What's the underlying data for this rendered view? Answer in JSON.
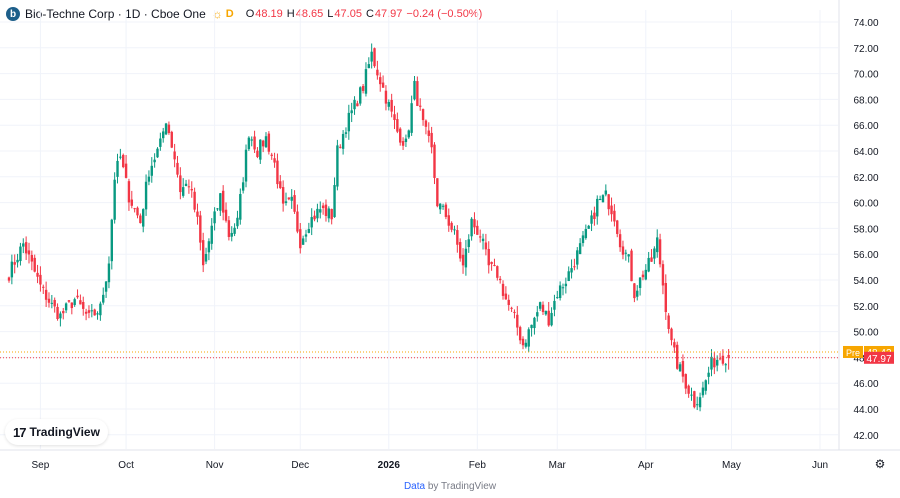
{
  "legend": {
    "logo_letter": "b",
    "symbol": "Bio-Techne Corp · 1D · Cboe One",
    "session_badge": "D",
    "open_key": "O",
    "open": "48.19",
    "high_key": "H",
    "high": "48.65",
    "low_key": "L",
    "low": "47.05",
    "close_key": "C",
    "close": "47.97",
    "change": "−0.24 (−0.50%)"
  },
  "chart_data": {
    "type": "candlestick",
    "interval": "1D",
    "y_axis": {
      "ticks": [
        "74.00",
        "72.00",
        "70.00",
        "68.00",
        "66.00",
        "64.00",
        "62.00",
        "60.00",
        "58.00",
        "56.00",
        "54.00",
        "52.00",
        "50.00",
        "48.00",
        "46.00",
        "44.00",
        "42.00"
      ],
      "ylim": [
        41.2,
        75.2
      ],
      "position": "right"
    },
    "x_axis": {
      "labels": [
        {
          "text": "Sep",
          "day": 3
        },
        {
          "text": "Oct",
          "day": 33
        },
        {
          "text": "Nov",
          "day": 64
        },
        {
          "text": "Dec",
          "day": 94
        },
        {
          "text": "2026",
          "day": 125,
          "bold": true
        },
        {
          "text": "Feb",
          "day": 156
        },
        {
          "text": "Mar",
          "day": 184
        },
        {
          "text": "Apr",
          "day": 215
        },
        {
          "text": "May",
          "day": 245
        },
        {
          "text": "Jun",
          "day": 276
        }
      ]
    },
    "colors": {
      "up": "#089981",
      "down": "#f23645",
      "pre": "#f7a600",
      "grid": "#f0f3fa",
      "axis_text": "#131722"
    },
    "price_labels": [
      {
        "tag": "Pre",
        "value": 48.42,
        "color": "#f7a600"
      },
      {
        "value": 47.97,
        "color": "#f23645"
      }
    ],
    "grid": true,
    "anchors": [
      [
        -8,
        54.5
      ],
      [
        -3,
        56.8
      ],
      [
        3,
        53.5
      ],
      [
        7,
        52.0
      ],
      [
        10,
        51.2
      ],
      [
        15,
        52.5
      ],
      [
        20,
        51.0
      ],
      [
        24,
        51.8
      ],
      [
        27,
        55.5
      ],
      [
        29,
        62.0
      ],
      [
        31,
        63.5
      ],
      [
        34,
        60.5
      ],
      [
        38,
        58.5
      ],
      [
        41,
        62.5
      ],
      [
        45,
        64.5
      ],
      [
        47,
        66.5
      ],
      [
        50,
        63.5
      ],
      [
        52,
        61.0
      ],
      [
        55,
        61.5
      ],
      [
        58,
        58.5
      ],
      [
        60,
        55.0
      ],
      [
        63,
        58.0
      ],
      [
        66,
        60.5
      ],
      [
        69,
        57.5
      ],
      [
        72,
        58.5
      ],
      [
        74,
        62.0
      ],
      [
        76,
        65.5
      ],
      [
        79,
        64.0
      ],
      [
        82,
        65.0
      ],
      [
        85,
        63.0
      ],
      [
        88,
        59.5
      ],
      [
        91,
        60.0
      ],
      [
        94,
        57.0
      ],
      [
        97,
        58.5
      ],
      [
        101,
        59.5
      ],
      [
        105,
        59.0
      ],
      [
        107,
        64.0
      ],
      [
        110,
        66.0
      ],
      [
        113,
        67.5
      ],
      [
        116,
        69.0
      ],
      [
        119,
        71.5
      ],
      [
        122,
        69.5
      ],
      [
        125,
        67.5
      ],
      [
        128,
        65.5
      ],
      [
        131,
        64.5
      ],
      [
        134,
        69.0
      ],
      [
        137,
        66.0
      ],
      [
        140,
        64.0
      ],
      [
        142,
        60.0
      ],
      [
        145,
        59.0
      ],
      [
        148,
        57.5
      ],
      [
        151,
        55.0
      ],
      [
        154,
        58.5
      ],
      [
        157,
        57.5
      ],
      [
        160,
        55.0
      ],
      [
        163,
        54.5
      ],
      [
        166,
        52.5
      ],
      [
        169,
        51.0
      ],
      [
        172,
        49.0
      ],
      [
        175,
        50.5
      ],
      [
        178,
        52.0
      ],
      [
        181,
        51.0
      ],
      [
        184,
        53.0
      ],
      [
        187,
        54.0
      ],
      [
        190,
        55.5
      ],
      [
        193,
        57.0
      ],
      [
        196,
        58.5
      ],
      [
        198,
        60.0
      ],
      [
        201,
        60.5
      ],
      [
        204,
        59.0
      ],
      [
        206,
        57.0
      ],
      [
        209,
        55.5
      ],
      [
        211,
        53.0
      ],
      [
        214,
        54.5
      ],
      [
        217,
        55.5
      ],
      [
        219,
        57.0
      ],
      [
        222,
        52.0
      ],
      [
        224,
        49.0
      ],
      [
        226,
        47.5
      ],
      [
        229,
        46.0
      ],
      [
        232,
        44.5
      ],
      [
        235,
        45.5
      ],
      [
        238,
        47.5
      ],
      [
        241,
        48.1
      ],
      [
        244,
        47.97
      ]
    ]
  },
  "branding": {
    "tv_mark": "17",
    "tv_text": "TradingView"
  },
  "footer": {
    "prefix": "Data",
    "suffix": " by TradingView"
  },
  "icons": {
    "sun": "sun-icon",
    "settings": "gear-icon"
  }
}
